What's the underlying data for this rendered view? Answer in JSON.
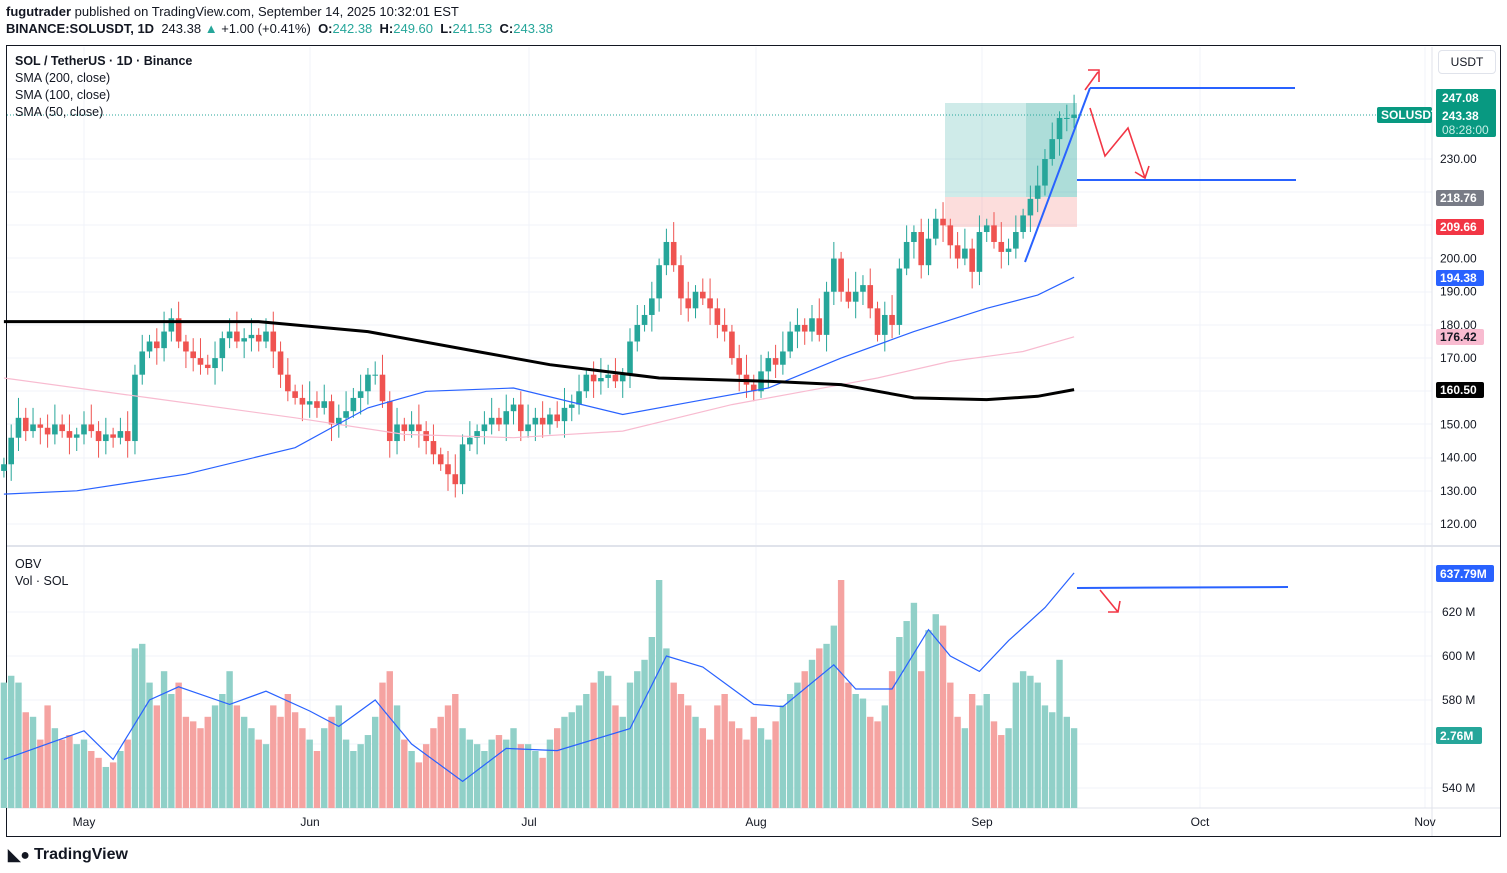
{
  "header": {
    "author": "fugutrader",
    "published": "published on TradingView.com, September 14, 2025 10:32:01 EST",
    "symbol": "BINANCE:SOLUSDT, 1D",
    "last": "243.38",
    "change": "+1.00 (+0.41%)",
    "o_label": "O:",
    "o": "242.38",
    "h_label": "H:",
    "h": "249.60",
    "l_label": "L:",
    "l": "241.53",
    "c_label": "C:",
    "c": "243.38"
  },
  "legend": {
    "title": "SOL / TetherUS · 1D · Binance",
    "sma200": "SMA (200, close)",
    "sma100": "SMA (100, close)",
    "sma50": "SMA (50, close)",
    "obv": "OBV",
    "vol": "Vol · SOL"
  },
  "axis": {
    "currency": "USDT",
    "price_ticks": [
      "230.00",
      "200.00",
      "190.00",
      "180.00",
      "170.00",
      "150.00",
      "140.00",
      "130.00",
      "120.00"
    ],
    "obv_ticks": [
      "620 M",
      "600 M",
      "580 M",
      "540 M"
    ],
    "months": [
      "May",
      "Jun",
      "Jul",
      "Aug",
      "Sep",
      "Oct",
      "Nov"
    ]
  },
  "badges": {
    "symbol": "SOLUSDT",
    "high": "247.08",
    "price": "243.38",
    "countdown": "08:28:00",
    "grey": "218.76",
    "red": "209.66",
    "sma50": "194.38",
    "sma100": "176.42",
    "sma200": "160.50",
    "obv": "637.79M",
    "vol": "2.76M"
  },
  "colors": {
    "up": "#26a69a",
    "down": "#ef5350",
    "sma50": "#2962ff",
    "sma100": "#f8bbd0",
    "sma200": "#000000",
    "obv": "#2962ff",
    "drawing_line": "#2962ff",
    "arrow": "#f23645"
  },
  "brand": "TradingView",
  "chart_data": {
    "type": "candlestick",
    "title": "SOL / TetherUS · 1D · Binance",
    "closes_by_month": [
      {
        "month": "2025-04",
        "first_day": 20,
        "closes": [
          138,
          146,
          152,
          148,
          150,
          149,
          147,
          150,
          148,
          146,
          147
        ]
      },
      {
        "month": "2025-05",
        "first_day": 1,
        "closes": [
          150,
          148,
          145,
          147,
          146,
          148,
          145,
          165,
          172,
          175,
          173,
          178,
          182,
          175,
          172,
          170,
          168,
          167,
          170,
          176,
          178,
          175,
          176,
          177,
          175,
          178,
          172,
          165,
          160,
          158,
          156
        ]
      },
      {
        "month": "2025-06",
        "first_day": 1,
        "closes": [
          157,
          155,
          157,
          150,
          152,
          154,
          158,
          160,
          165,
          165,
          157,
          145,
          150,
          148,
          150,
          148,
          145,
          141,
          138,
          135,
          132,
          144,
          146,
          148,
          150,
          152,
          150,
          154,
          156,
          148
        ]
      },
      {
        "month": "2025-07",
        "first_day": 1,
        "closes": [
          150,
          152,
          150,
          153,
          151,
          155,
          156,
          160,
          165,
          163,
          164,
          165,
          163,
          165,
          175,
          180,
          183,
          188,
          198,
          205,
          198,
          188,
          185,
          190,
          188,
          185,
          180,
          178,
          170,
          165,
          162
        ]
      },
      {
        "month": "2025-08",
        "first_day": 1,
        "closes": [
          160,
          166,
          170,
          168,
          172,
          178,
          180,
          178,
          182,
          177,
          190,
          200,
          190,
          187,
          190,
          192,
          185,
          177,
          183,
          180,
          197,
          205,
          208,
          198,
          206,
          212,
          210,
          204,
          200,
          203,
          196
        ]
      },
      {
        "month": "2025-09",
        "first_day": 1,
        "closes": [
          208,
          210,
          205,
          202,
          203,
          208,
          213,
          218,
          222,
          230,
          236,
          242.38,
          242.38,
          243.38
        ]
      }
    ],
    "volume_relative": [
      55,
      58,
      55,
      42,
      40,
      30,
      45,
      35,
      30,
      32,
      28,
      30,
      25,
      22,
      18,
      20,
      25,
      30,
      70,
      72,
      55,
      45,
      60,
      50,
      55,
      40,
      38,
      35,
      40,
      45,
      50,
      60,
      45,
      40,
      35,
      30,
      28,
      45,
      40,
      50,
      42,
      35,
      30,
      25,
      35,
      40,
      45,
      30,
      25,
      28,
      32,
      40,
      55,
      60,
      45,
      30,
      25,
      20,
      28,
      35,
      40,
      45,
      50,
      35,
      30,
      28,
      25,
      30,
      32,
      30,
      35,
      28,
      28,
      25,
      22,
      30,
      35,
      40,
      42,
      45,
      50,
      55,
      60,
      58,
      45,
      40,
      55,
      60,
      65,
      75,
      100,
      70,
      55,
      50,
      45,
      40,
      35,
      30,
      45,
      50,
      38,
      35,
      30,
      40,
      35,
      30,
      38,
      45,
      50,
      55,
      60,
      65,
      70,
      72,
      80,
      100,
      55,
      50,
      48,
      40,
      38,
      45,
      60,
      75,
      82,
      90,
      60,
      78,
      85,
      80,
      55,
      40,
      35,
      50,
      45,
      50,
      38,
      32,
      35,
      55,
      60,
      58,
      55,
      45,
      42,
      65,
      40,
      35
    ],
    "sma200": [
      [
        0,
        181
      ],
      [
        35,
        181
      ],
      [
        50,
        178
      ],
      [
        65,
        172
      ],
      [
        75,
        168
      ],
      [
        90,
        164
      ],
      [
        105,
        163
      ],
      [
        115,
        162
      ],
      [
        125,
        158
      ],
      [
        135,
        157.5
      ],
      [
        142,
        158.5
      ],
      [
        147,
        160.5
      ]
    ],
    "sma100": [
      [
        0,
        164
      ],
      [
        20,
        158
      ],
      [
        40,
        152
      ],
      [
        55,
        147
      ],
      [
        70,
        146
      ],
      [
        85,
        148
      ],
      [
        100,
        156
      ],
      [
        110,
        160
      ],
      [
        120,
        164
      ],
      [
        130,
        169
      ],
      [
        140,
        172
      ],
      [
        147,
        176.42
      ]
    ],
    "sma50": [
      [
        0,
        129
      ],
      [
        10,
        130
      ],
      [
        25,
        135
      ],
      [
        40,
        143
      ],
      [
        50,
        155
      ],
      [
        58,
        160
      ],
      [
        70,
        161
      ],
      [
        85,
        153
      ],
      [
        95,
        157
      ],
      [
        105,
        161
      ],
      [
        115,
        170
      ],
      [
        125,
        178
      ],
      [
        135,
        185
      ],
      [
        142,
        189
      ],
      [
        147,
        194.38
      ]
    ],
    "obv_millions": [
      [
        0,
        553
      ],
      [
        11,
        566
      ],
      [
        15,
        553
      ],
      [
        20,
        580
      ],
      [
        24,
        586
      ],
      [
        31,
        578
      ],
      [
        36,
        584
      ],
      [
        42,
        575
      ],
      [
        46,
        568
      ],
      [
        51,
        580
      ],
      [
        56,
        560
      ],
      [
        63,
        543
      ],
      [
        69,
        558
      ],
      [
        76,
        557
      ],
      [
        86,
        567
      ],
      [
        91,
        600
      ],
      [
        96,
        595
      ],
      [
        103,
        578
      ],
      [
        107,
        577
      ],
      [
        114,
        596
      ],
      [
        117,
        585
      ],
      [
        122,
        585
      ],
      [
        127,
        612
      ],
      [
        130,
        600
      ],
      [
        134,
        593
      ],
      [
        138,
        607
      ],
      [
        143,
        622
      ],
      [
        147,
        637.79
      ]
    ],
    "ylim": [
      114,
      262
    ],
    "obv_ylim": [
      532,
      650
    ]
  }
}
